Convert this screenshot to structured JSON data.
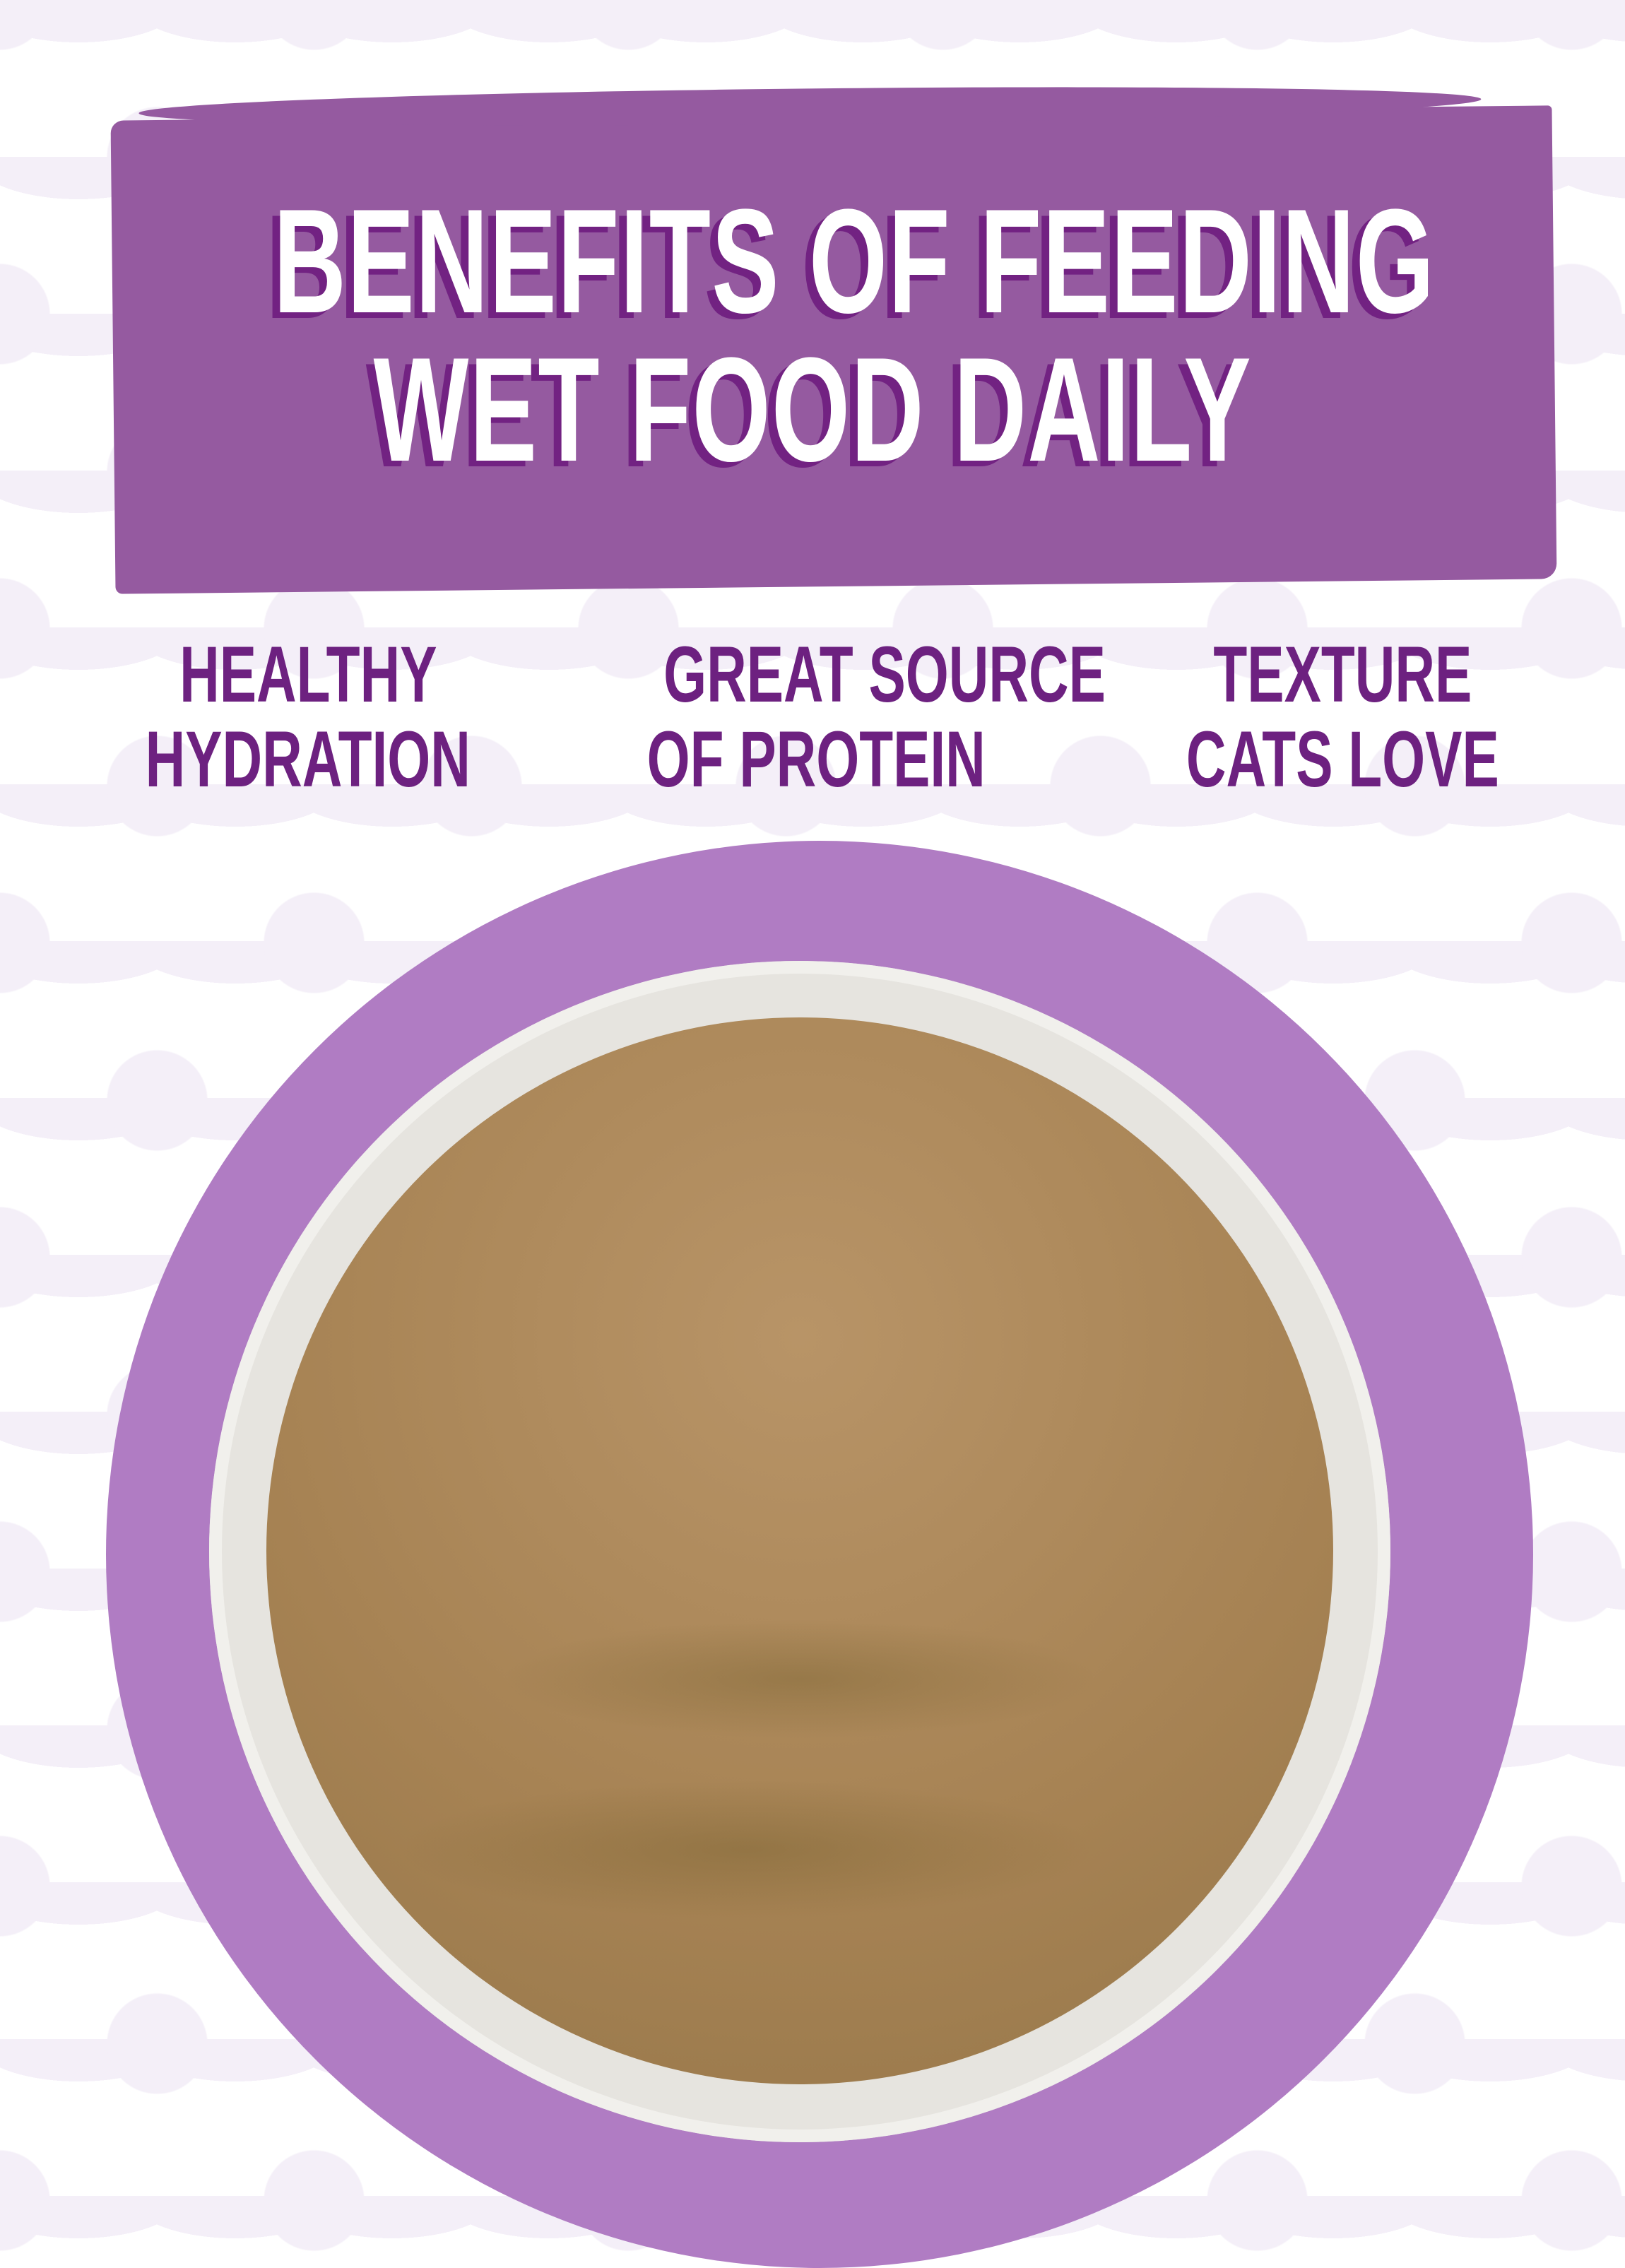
{
  "header": {
    "line1": "BENEFITS OF FEEDING",
    "line2": "WET FOOD DAILY"
  },
  "benefits": [
    {
      "line1": "HEALTHY",
      "line2": "HYDRATION"
    },
    {
      "line1": "GREAT SOURCE",
      "line2": "OF PROTEIN"
    },
    {
      "line1": "TEXTURE",
      "line2": "CATS LOVE"
    }
  ],
  "colors": {
    "banner": "#955aa0",
    "text_shadow": "#722282",
    "benefit_text": "#6d2180",
    "ring": "#b07cc3"
  },
  "image": {
    "subject": "bowl-of-wet-cat-food"
  }
}
